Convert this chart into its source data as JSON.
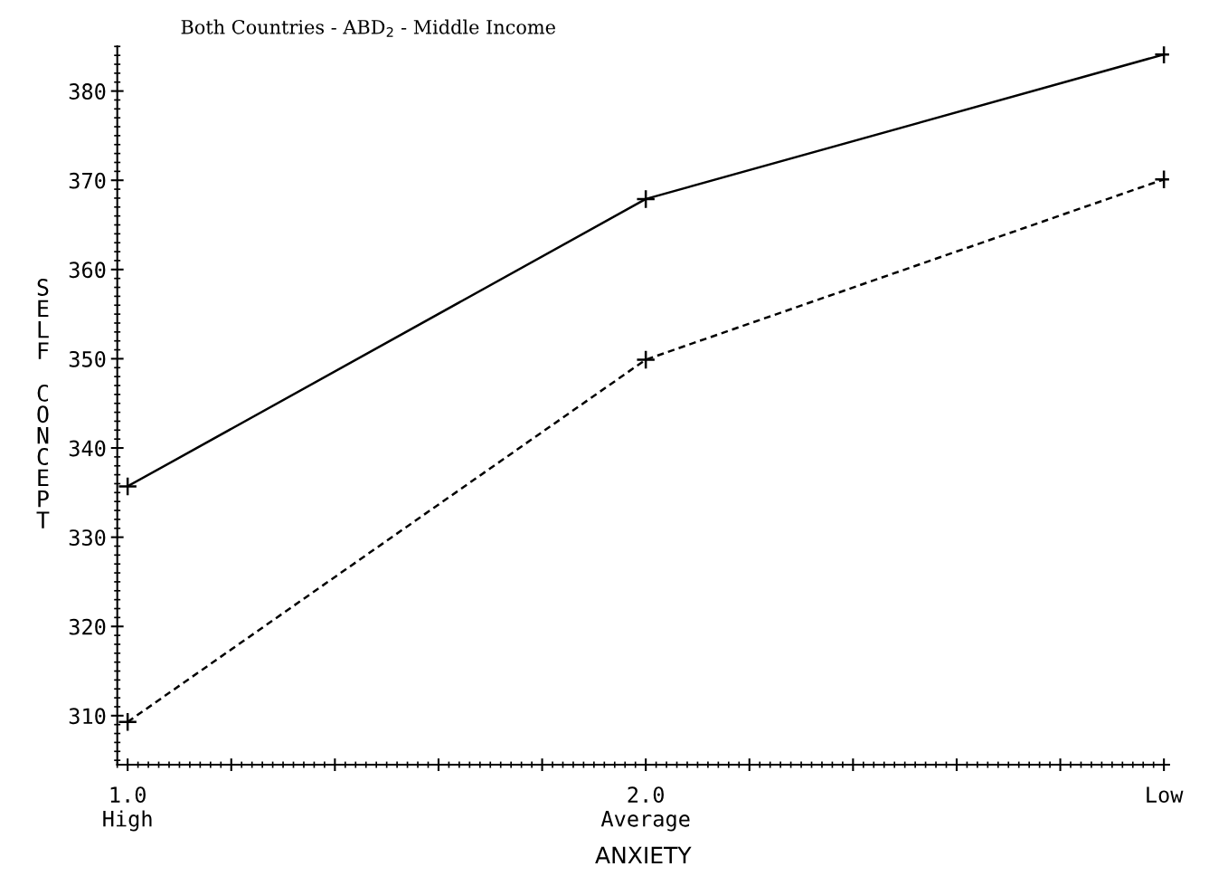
{
  "chart_data": {
    "type": "line",
    "title": "Both Countries - ABD$_{2}$ - Middle Income",
    "xlabel": "ANXIETY",
    "ylabel": "SELF CONCEPT",
    "x": [
      1.0,
      2.0,
      3.0
    ],
    "series": [
      {
        "color": "#000000",
        "values": [
          335.7,
          367.9,
          384.1
        ],
        "line_style": "solid"
      },
      {
        "color": "#000000",
        "values": [
          309.3,
          349.9,
          370.1
        ],
        "line_style": "dashed"
      }
    ],
    "xlim": [
      0.98,
      3.01
    ],
    "ylim": [
      304.5,
      385
    ],
    "xticks": [
      {
        "value": 1.0,
        "label": "1.0\nHigh"
      },
      {
        "value": 1.2,
        "label": null
      },
      {
        "value": 1.4,
        "label": null
      },
      {
        "value": 1.6,
        "label": null
      },
      {
        "value": 1.8,
        "label": null
      },
      {
        "value": 2.0,
        "label": "2.0\nAverage"
      },
      {
        "value": 2.2,
        "label": null
      },
      {
        "value": 2.4,
        "label": null
      },
      {
        "value": 2.6,
        "label": null
      },
      {
        "value": 2.8,
        "label": null
      },
      {
        "value": 3.0,
        "label": "Low"
      }
    ],
    "yticks": [
      310,
      320,
      330,
      340,
      350,
      360,
      370,
      380
    ],
    "marker": "cross",
    "grid": false,
    "legend": false
  }
}
